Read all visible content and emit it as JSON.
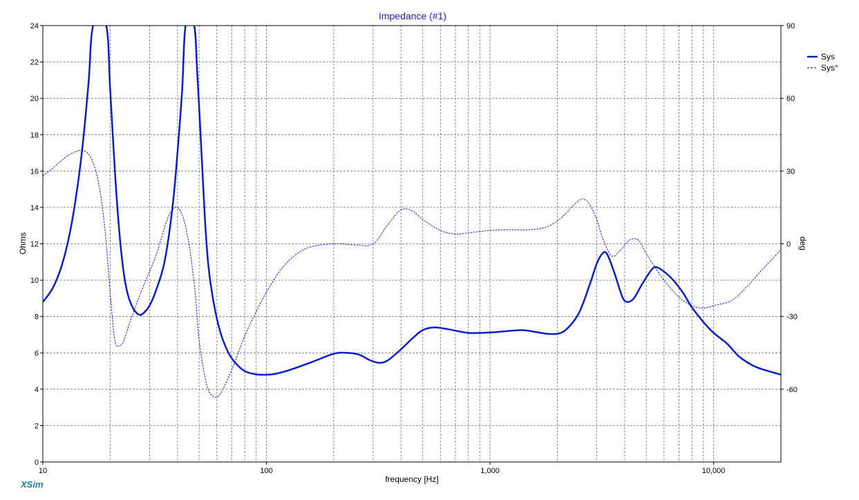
{
  "colors": {
    "series": "#0a1ec8",
    "grid": "#6e6e6e",
    "title": "#1e1eb4",
    "brand": "#1f7f9a"
  },
  "brand": "XSim",
  "chart_data": {
    "type": "line",
    "title": "Impedance (#1)",
    "xlabel": "frequency [Hz]",
    "ylabel": "Ohms",
    "y2label": "deg",
    "xscale": "log",
    "xlim": [
      10,
      20000
    ],
    "ylim": [
      0,
      24
    ],
    "y2lim": [
      -90,
      90
    ],
    "grid": true,
    "legend_position": "top-right",
    "x_ticks": [
      {
        "value": 10,
        "label": "10"
      },
      {
        "value": 100,
        "label": "100"
      },
      {
        "value": 1000,
        "label": "1,000"
      },
      {
        "value": 10000,
        "label": "10,000"
      }
    ],
    "y_ticks": [
      {
        "value": 0,
        "label": "0"
      },
      {
        "value": 2,
        "label": "2"
      },
      {
        "value": 4,
        "label": "4"
      },
      {
        "value": 6,
        "label": "6"
      },
      {
        "value": 8,
        "label": "8"
      },
      {
        "value": 10,
        "label": "10"
      },
      {
        "value": 12,
        "label": "12"
      },
      {
        "value": 14,
        "label": "14"
      },
      {
        "value": 16,
        "label": "16"
      },
      {
        "value": 18,
        "label": "18"
      },
      {
        "value": 20,
        "label": "20"
      },
      {
        "value": 22,
        "label": "22"
      },
      {
        "value": 24,
        "label": "24"
      }
    ],
    "y2_ticks": [
      {
        "value": -60,
        "label": "-60"
      },
      {
        "value": -30,
        "label": "-30"
      },
      {
        "value": 0,
        "label": "0"
      },
      {
        "value": 30,
        "label": "30"
      },
      {
        "value": 60,
        "label": "60"
      },
      {
        "value": 90,
        "label": "90"
      }
    ],
    "series": [
      {
        "name": "Sys",
        "axis": "left",
        "style": "solid",
        "points": [
          [
            10,
            8.8
          ],
          [
            11,
            9.5
          ],
          [
            12,
            10.6
          ],
          [
            13,
            12.2
          ],
          [
            14,
            14.4
          ],
          [
            15,
            17.2
          ],
          [
            16,
            20.8
          ],
          [
            16.8,
            24
          ],
          [
            19.2,
            24
          ],
          [
            20,
            20.5
          ],
          [
            21,
            16
          ],
          [
            22,
            12.6
          ],
          [
            23,
            10.4
          ],
          [
            24,
            9.2
          ],
          [
            25,
            8.6
          ],
          [
            26,
            8.25
          ],
          [
            27,
            8.1
          ],
          [
            28,
            8.15
          ],
          [
            30,
            8.6
          ],
          [
            32,
            9.4
          ],
          [
            35,
            11
          ],
          [
            38,
            14
          ],
          [
            40,
            17
          ],
          [
            42,
            20.5
          ],
          [
            43.5,
            24
          ],
          [
            47.5,
            24
          ],
          [
            49,
            21.5
          ],
          [
            51,
            17.5
          ],
          [
            53,
            13.5
          ],
          [
            55,
            10.8
          ],
          [
            58,
            8.8
          ],
          [
            62,
            7.2
          ],
          [
            67,
            6.1
          ],
          [
            72,
            5.5
          ],
          [
            80,
            5.0
          ],
          [
            90,
            4.82
          ],
          [
            100,
            4.8
          ],
          [
            110,
            4.85
          ],
          [
            130,
            5.1
          ],
          [
            160,
            5.5
          ],
          [
            200,
            5.95
          ],
          [
            230,
            6.0
          ],
          [
            260,
            5.9
          ],
          [
            290,
            5.6
          ],
          [
            320,
            5.45
          ],
          [
            350,
            5.6
          ],
          [
            400,
            6.2
          ],
          [
            450,
            6.8
          ],
          [
            500,
            7.25
          ],
          [
            560,
            7.4
          ],
          [
            650,
            7.3
          ],
          [
            800,
            7.1
          ],
          [
            1000,
            7.12
          ],
          [
            1200,
            7.2
          ],
          [
            1400,
            7.25
          ],
          [
            1600,
            7.15
          ],
          [
            1800,
            7.05
          ],
          [
            2000,
            7.05
          ],
          [
            2200,
            7.3
          ],
          [
            2500,
            8.2
          ],
          [
            2800,
            9.8
          ],
          [
            3000,
            10.9
          ],
          [
            3200,
            11.5
          ],
          [
            3350,
            11.4
          ],
          [
            3600,
            10.4
          ],
          [
            3900,
            9.1
          ],
          [
            4100,
            8.8
          ],
          [
            4400,
            9.0
          ],
          [
            4800,
            9.8
          ],
          [
            5300,
            10.6
          ],
          [
            5600,
            10.7
          ],
          [
            6100,
            10.4
          ],
          [
            6600,
            10.0
          ],
          [
            7300,
            9.3
          ],
          [
            8000,
            8.5
          ],
          [
            9000,
            7.7
          ],
          [
            10000,
            7.1
          ],
          [
            11500,
            6.5
          ],
          [
            13000,
            5.8
          ],
          [
            15000,
            5.3
          ],
          [
            17000,
            5.05
          ],
          [
            20000,
            4.8
          ]
        ]
      },
      {
        "name": "Sys°",
        "axis": "right",
        "style": "dashed",
        "points": [
          [
            10,
            28
          ],
          [
            11,
            31
          ],
          [
            12,
            34
          ],
          [
            13,
            36.5
          ],
          [
            14,
            38
          ],
          [
            15,
            38.5
          ],
          [
            16,
            37
          ],
          [
            17,
            32
          ],
          [
            18,
            22
          ],
          [
            19,
            5
          ],
          [
            20,
            -20
          ],
          [
            21,
            -40
          ],
          [
            22,
            -42
          ],
          [
            23,
            -40
          ],
          [
            25,
            -30
          ],
          [
            28,
            -18
          ],
          [
            32,
            -5
          ],
          [
            36,
            10
          ],
          [
            39,
            15
          ],
          [
            42,
            12
          ],
          [
            45,
            0
          ],
          [
            48,
            -20
          ],
          [
            50,
            -40
          ],
          [
            54,
            -58
          ],
          [
            58,
            -63
          ],
          [
            62,
            -62
          ],
          [
            70,
            -52
          ],
          [
            80,
            -38
          ],
          [
            90,
            -28
          ],
          [
            100,
            -20
          ],
          [
            120,
            -9
          ],
          [
            150,
            -2
          ],
          [
            200,
            0
          ],
          [
            250,
            -0.5
          ],
          [
            300,
            0
          ],
          [
            350,
            8
          ],
          [
            400,
            14
          ],
          [
            450,
            13.5
          ],
          [
            500,
            10
          ],
          [
            600,
            5.5
          ],
          [
            700,
            4
          ],
          [
            800,
            4.5
          ],
          [
            1000,
            5.5
          ],
          [
            1200,
            5.8
          ],
          [
            1500,
            5.8
          ],
          [
            1800,
            7
          ],
          [
            2100,
            11
          ],
          [
            2400,
            16.5
          ],
          [
            2600,
            18.5
          ],
          [
            2800,
            16
          ],
          [
            3000,
            10
          ],
          [
            3200,
            2
          ],
          [
            3500,
            -5
          ],
          [
            3800,
            -3
          ],
          [
            4200,
            1.5
          ],
          [
            4600,
            1.5
          ],
          [
            5000,
            -4
          ],
          [
            5500,
            -10
          ],
          [
            6000,
            -15
          ],
          [
            7000,
            -22
          ],
          [
            8000,
            -25.5
          ],
          [
            9000,
            -26.5
          ],
          [
            10000,
            -25.5
          ],
          [
            12000,
            -23.5
          ],
          [
            14000,
            -18
          ],
          [
            16000,
            -12
          ],
          [
            18000,
            -7
          ],
          [
            20000,
            -2.5
          ]
        ]
      }
    ]
  }
}
